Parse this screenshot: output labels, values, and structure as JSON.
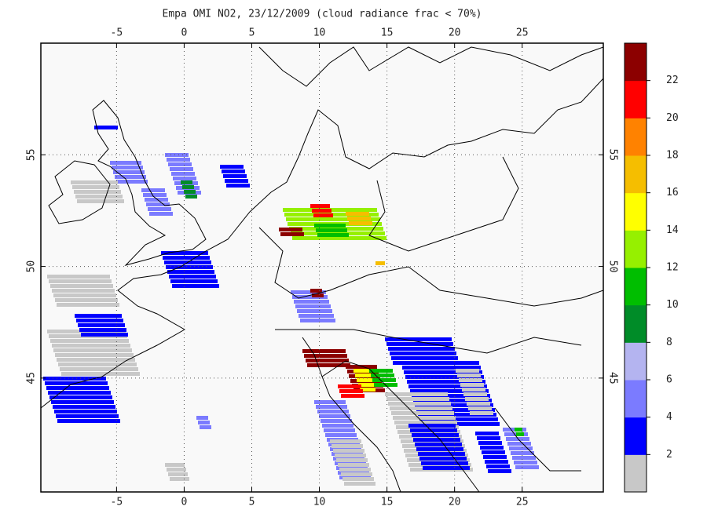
{
  "title": "Empa OMI NO2, 23/12/2009 (cloud radiance frac < 70%)",
  "map": {
    "lonlim": [
      -10.6,
      31
    ],
    "latlim": [
      39.9,
      60
    ],
    "lon_ticks": [
      -5,
      0,
      5,
      10,
      15,
      20,
      25
    ],
    "lat_ticks": [
      45,
      50,
      55
    ]
  },
  "colorbar": {
    "lim": [
      0,
      24
    ],
    "ticks": [
      2,
      4,
      6,
      8,
      10,
      12,
      14,
      16,
      18,
      20,
      22
    ],
    "colors": [
      "#c8c8c8",
      "#0000ff",
      "#7b7bff",
      "#b4b4f0",
      "#008c28",
      "#00be00",
      "#96f000",
      "#ffff00",
      "#f5be00",
      "#ff8200",
      "#ff0000",
      "#8c0000"
    ]
  }
}
